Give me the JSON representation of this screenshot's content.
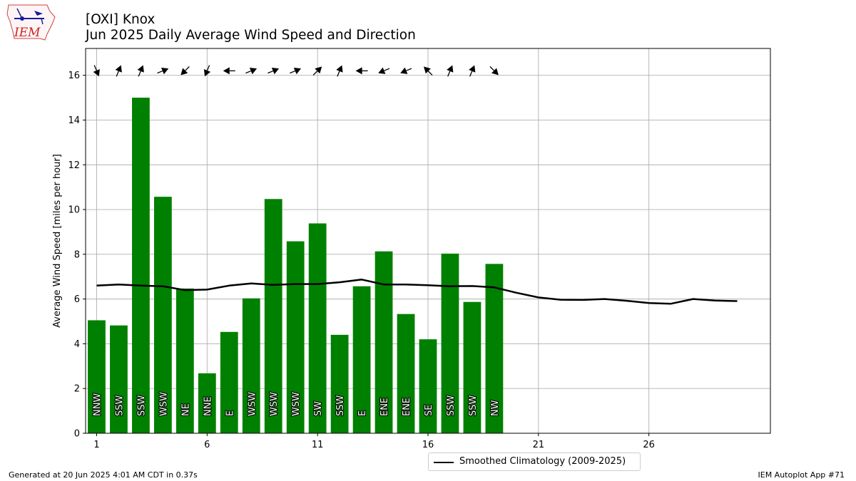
{
  "header": {
    "title_line1": "[OXI] Knox",
    "title_line2": "Jun 2025 Daily Average Wind Speed and Direction"
  },
  "logo": {
    "text": "IEM"
  },
  "footer": {
    "generated": "Generated at 20 Jun 2025 4:01 AM CDT in 0.37s",
    "app": "IEM Autoplot App #71"
  },
  "legend": {
    "climatology_label": "Smoothed Climatology (2009-2025)"
  },
  "colors": {
    "bar": "#008000",
    "line": "#000000",
    "grid": "#b0b0b0",
    "logo_red": "#cc2222",
    "logo_blue": "#1a1aa0"
  },
  "chart_data": {
    "type": "bar",
    "title": "[OXI] Knox\nJun 2025 Daily Average Wind Speed and Direction",
    "ylabel": "Average Wind Speed [miles per hour]",
    "xlabel": "",
    "xlim": [
      0.5,
      31.5
    ],
    "ylim": [
      0,
      17.2
    ],
    "xticks": [
      1,
      6,
      11,
      16,
      21,
      26
    ],
    "yticks": [
      0,
      2,
      4,
      6,
      8,
      10,
      12,
      14,
      16
    ],
    "grid": true,
    "legend_position": "bottom-center",
    "days": [
      1,
      2,
      3,
      4,
      5,
      6,
      7,
      8,
      9,
      10,
      11,
      12,
      13,
      14,
      15,
      16,
      17,
      18,
      19
    ],
    "values": [
      5.05,
      4.82,
      15.0,
      10.57,
      6.47,
      2.68,
      4.53,
      6.03,
      10.47,
      8.58,
      9.38,
      4.4,
      6.57,
      8.13,
      5.33,
      4.2,
      8.03,
      5.87,
      7.57
    ],
    "directions": [
      "NNW",
      "SSW",
      "SSW",
      "WSW",
      "NE",
      "NNE",
      "E",
      "WSW",
      "WSW",
      "WSW",
      "SW",
      "SSW",
      "E",
      "ENE",
      "ENE",
      "SE",
      "SSW",
      "SSW",
      "NW"
    ],
    "climatology": {
      "name": "Smoothed Climatology (2009-2025)",
      "days": [
        1,
        2,
        3,
        4,
        5,
        6,
        7,
        8,
        9,
        10,
        11,
        12,
        13,
        14,
        15,
        16,
        17,
        18,
        19,
        20,
        21,
        22,
        23,
        24,
        25,
        26,
        27,
        28,
        29,
        30
      ],
      "values": [
        6.6,
        6.65,
        6.6,
        6.57,
        6.4,
        6.42,
        6.6,
        6.7,
        6.63,
        6.67,
        6.67,
        6.75,
        6.87,
        6.65,
        6.65,
        6.62,
        6.57,
        6.58,
        6.52,
        6.28,
        6.07,
        5.97,
        5.96,
        6.0,
        5.92,
        5.82,
        5.79,
        6.0,
        5.93,
        5.91
      ]
    }
  }
}
